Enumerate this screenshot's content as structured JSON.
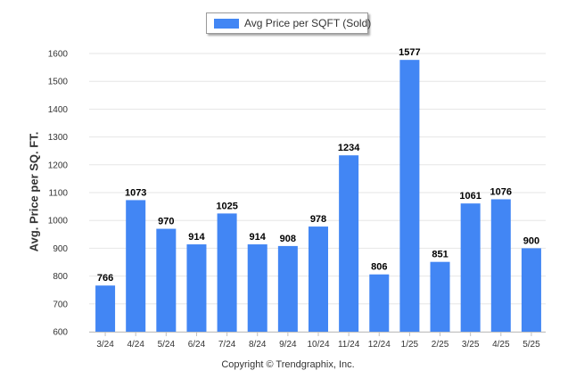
{
  "legend": {
    "label": "Avg Price per SQFT (Sold)",
    "color": "#4286f4"
  },
  "credit": "Copyright © Trendgraphix, Inc.",
  "chart_data": {
    "type": "bar",
    "categories": [
      "3/24",
      "4/24",
      "5/24",
      "6/24",
      "7/24",
      "8/24",
      "9/24",
      "10/24",
      "11/24",
      "12/24",
      "1/25",
      "2/25",
      "3/25",
      "4/25",
      "5/25"
    ],
    "series": [
      {
        "name": "Avg Price per SQFT (Sold)",
        "values": [
          766,
          1073,
          970,
          914,
          1025,
          914,
          908,
          978,
          1234,
          806,
          1577,
          851,
          1061,
          1076,
          900
        ]
      }
    ],
    "data_labels": true,
    "ylabel": "Avg. Price per SQ. FT.",
    "ylim": [
      600,
      1600
    ],
    "yticks": [
      600,
      700,
      800,
      900,
      1000,
      1100,
      1200,
      1300,
      1400,
      1500,
      1600
    ],
    "grid": true,
    "legend_position": "top-center",
    "bar_color": "#4286f4",
    "grid_color": "#e6e6e6",
    "text_color": "#333333"
  }
}
